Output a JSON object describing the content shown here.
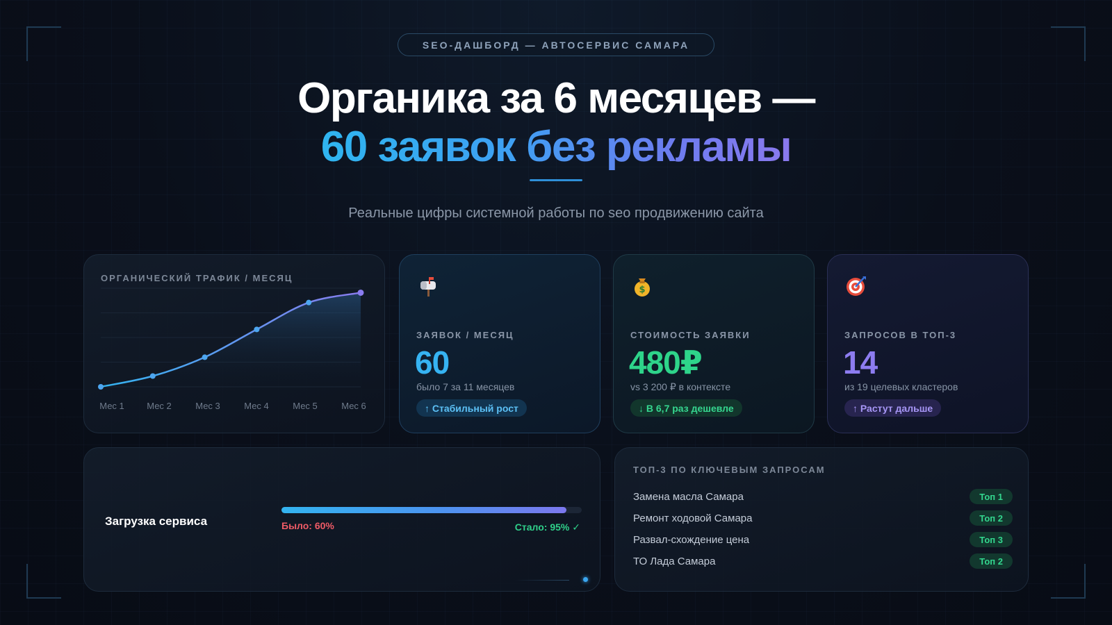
{
  "header": {
    "pill": "SEO-ДАШБОРД — АВТОСЕРВИС САМАРА",
    "headline_line1": "Органика за 6 месяцев —",
    "headline_line2": "60 заявок без рекламы",
    "subtitle": "Реальные цифры системной работы по seo продвижению сайта"
  },
  "chart_data": {
    "type": "area",
    "title": "ОРГАНИЧЕСКИЙ ТРАФИК / МЕСЯЦ",
    "categories": [
      "Мес 1",
      "Мес 2",
      "Мес 3",
      "Мес 4",
      "Мес 5",
      "Мес 6"
    ],
    "values": [
      0,
      12,
      33,
      64,
      94,
      105
    ],
    "ylim": [
      0,
      110
    ],
    "grid": true,
    "color": "#5a9cf2"
  },
  "stats": [
    {
      "icon": "mailbox-icon",
      "label": "ЗАЯВОК / МЕСЯЦ",
      "value": "60",
      "note": "было 7 за 11 месяцев",
      "badge": "↑ Стабильный рост",
      "value_color": "#36b3f2",
      "badge_color": "#5cc0f5",
      "badge_bg": "#123450"
    },
    {
      "icon": "money-bag-icon",
      "label": "СТОИМОСТЬ ЗАЯВКИ",
      "value": "480₽",
      "note": "vs 3 200 ₽ в контексте",
      "badge": "↓ В 6,7 раз дешевле",
      "value_color": "#2ed48a",
      "badge_color": "#35d68f",
      "badge_bg": "#12362c"
    },
    {
      "icon": "target-icon",
      "label": "ЗАПРОСОВ В ТОП-3",
      "value": "14",
      "note": "из 19 целевых кластеров",
      "badge": "↑ Растут дальше",
      "value_color": "#8d7cf0",
      "badge_color": "#a796f5",
      "badge_bg": "#27244f"
    }
  ],
  "load": {
    "label": "Загрузка сервиса",
    "was": "Было: 60%",
    "now": "Стало: 95% ✓",
    "progress": 0.95
  },
  "top3": {
    "title": "ТОП-3 ПО КЛЮЧЕВЫМ ЗАПРОСАМ",
    "items": [
      {
        "query": "Замена масла Самара",
        "position": "Топ 1"
      },
      {
        "query": "Ремонт ходовой Самара",
        "position": "Топ 2"
      },
      {
        "query": "Развал-схождение цена",
        "position": "Топ 3"
      },
      {
        "query": "ТО Лада Самара",
        "position": "Топ 2"
      }
    ]
  }
}
